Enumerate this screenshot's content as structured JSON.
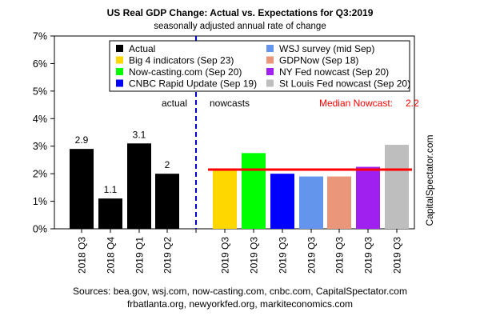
{
  "chart_data": {
    "type": "bar",
    "title": "US Real GDP Change: Actual vs. Expectations for Q3:2019",
    "subtitle": "seasonally adjusted annual rate of change",
    "ylim": [
      0,
      7
    ],
    "yticks": [
      "0%",
      "1%",
      "2%",
      "3%",
      "4%",
      "5%",
      "6%",
      "7%"
    ],
    "grid": false,
    "legend_position": "top",
    "section_labels": {
      "actual": "actual",
      "nowcasts": "nowcasts"
    },
    "median_nowcast": {
      "label": "Median Nowcast:",
      "value": 2.2,
      "value_label": "2.2",
      "color": "#ff0000",
      "line_value": 2.15
    },
    "watermark": "CapitalSpectator.com",
    "sources": [
      "Sources: bea.gov, wsj.com, now-casting.com, cnbc.com, CapitalSpectator.com",
      "frbatlanta.org, newyorkfed.org, markiteconomics.com"
    ],
    "actual": {
      "categories": [
        "2018 Q3",
        "2018 Q4",
        "2019 Q1",
        "2019 Q2"
      ],
      "values": [
        2.9,
        1.1,
        3.1,
        2.0
      ],
      "labels": [
        "2.9",
        "1.1",
        "3.1",
        "2"
      ],
      "color": "#000000"
    },
    "nowcasts": {
      "categories": [
        "2019 Q3",
        "2019 Q3",
        "2019 Q3",
        "2019 Q3",
        "2019 Q3",
        "2019 Q3",
        "2019 Q3"
      ],
      "series": [
        {
          "name": "Big 4 indicators (Sep 23)",
          "value": 2.15,
          "color": "#ffd700"
        },
        {
          "name": "Now-casting.com (Sep 20)",
          "value": 2.75,
          "color": "#00ff00"
        },
        {
          "name": "CNBC Rapid Update (Sep 19)",
          "value": 2.0,
          "color": "#0000ff"
        },
        {
          "name": "WSJ survey (mid Sep)",
          "value": 1.9,
          "color": "#6495ed"
        },
        {
          "name": "GDPNow (Sep 18)",
          "value": 1.9,
          "color": "#e9967a"
        },
        {
          "name": "NY Fed nowcast (Sep 20)",
          "value": 2.25,
          "color": "#a020f0"
        },
        {
          "name": "St Louis Fed nowcast (Sep 20)",
          "value": 3.05,
          "color": "#bebebe"
        }
      ]
    },
    "legend": [
      {
        "name": "Actual",
        "color": "#000000"
      },
      {
        "name": "WSJ survey (mid Sep)",
        "color": "#6495ed"
      },
      {
        "name": "Big 4 indicators (Sep 23)",
        "color": "#ffd700"
      },
      {
        "name": "GDPNow (Sep 18)",
        "color": "#e9967a"
      },
      {
        "name": "Now-casting.com (Sep 20)",
        "color": "#00ff00"
      },
      {
        "name": "NY Fed nowcast (Sep 20)",
        "color": "#a020f0"
      },
      {
        "name": "CNBC Rapid Update (Sep 19)",
        "color": "#0000ff"
      },
      {
        "name": "St Louis Fed nowcast (Sep 20)",
        "color": "#bebebe"
      }
    ]
  }
}
